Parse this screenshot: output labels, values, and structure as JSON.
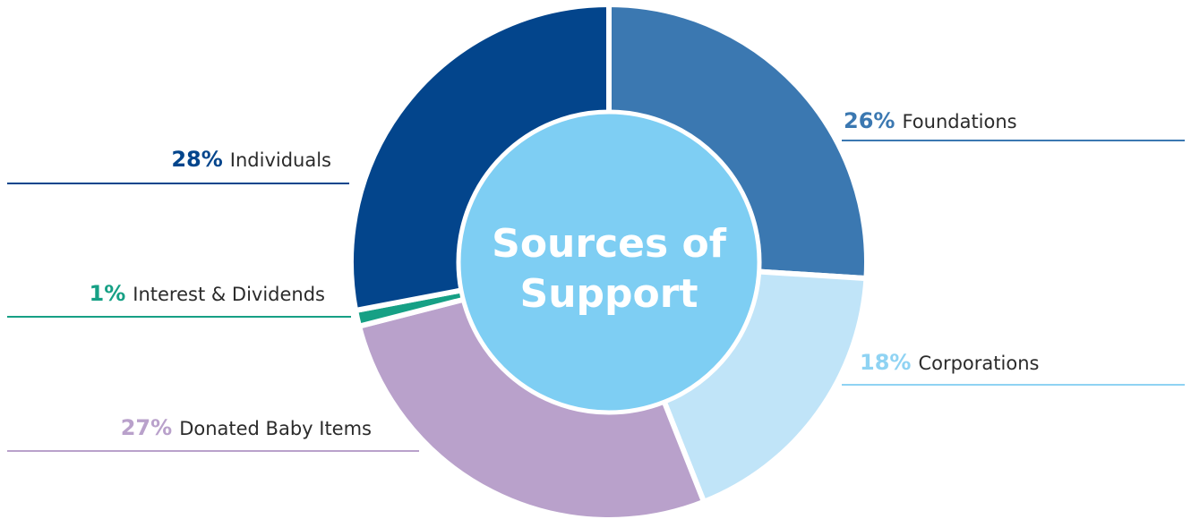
{
  "chart_data": {
    "type": "pie",
    "title_lines": [
      "Sources of",
      "Support"
    ],
    "slices": [
      {
        "label": "Foundations",
        "percent_label": "26%",
        "value": 26,
        "color": "#3b78b1"
      },
      {
        "label": "Corporations",
        "percent_label": "18%",
        "value": 18,
        "color": "#c0e4f8"
      },
      {
        "label": "Donated Baby Items",
        "percent_label": "27%",
        "value": 27,
        "color": "#b9a1cb"
      },
      {
        "label": "Interest & Dividends",
        "percent_label": "1%",
        "value": 1,
        "color": "#16a085"
      },
      {
        "label": "Individuals",
        "percent_label": "28%",
        "value": 28,
        "color": "#03458c"
      }
    ],
    "pct_colors": {
      "Foundations": "#3b78b1",
      "Corporations": "#8fd3f3",
      "Donated Baby Items": "#b9a1cb",
      "Interest & Dividends": "#16a085",
      "Individuals": "#03458c"
    },
    "center_color": "#7ecef3"
  }
}
